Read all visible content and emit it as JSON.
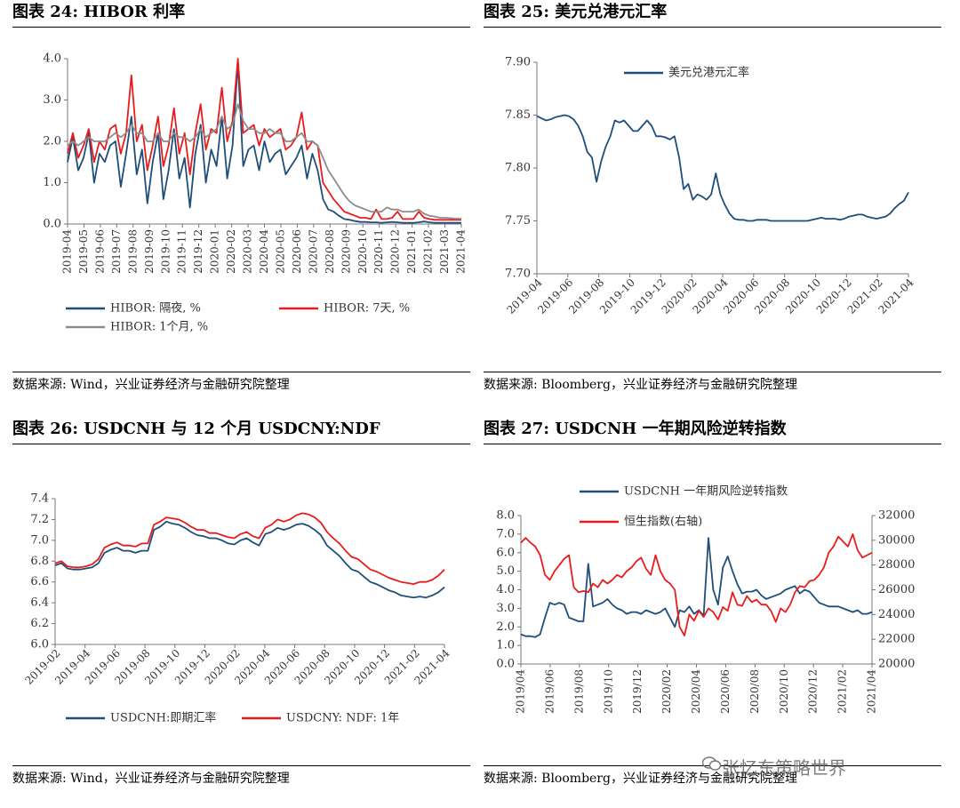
{
  "watermark": "张忆东策略世界",
  "panels": [
    {
      "title": "图表 24:  HIBOR 利率",
      "source": "数据来源:  Wind，兴业证券经济与金融研究院整理",
      "chart_data": {
        "type": "line",
        "title": "",
        "ylim": [
          0,
          4
        ],
        "yticks": [
          "0.0",
          "1.0",
          "2.0",
          "3.0",
          "4.0"
        ],
        "xticks": [
          "2019-04",
          "2019-05",
          "2019-06",
          "2019-07",
          "2019-08",
          "2019-09",
          "2019-10",
          "2019-11",
          "2019-12",
          "2020-01",
          "2020-02",
          "2020-03",
          "2020-04",
          "2020-05",
          "2020-06",
          "2020-07",
          "2020-08",
          "2020-09",
          "2020-10",
          "2020-11",
          "2020-12",
          "2021-01",
          "2021-02",
          "2021-03",
          "2021-04"
        ],
        "legend": "bottom",
        "series": [
          {
            "name": "HIBOR: 隔夜, %",
            "color": "#1f4e79",
            "values": [
              1.5,
              2.1,
              1.3,
              1.6,
              2.2,
              1.0,
              1.7,
              1.5,
              1.9,
              2.0,
              0.9,
              1.7,
              2.6,
              1.2,
              1.8,
              0.5,
              1.5,
              2.2,
              0.6,
              1.3,
              2.3,
              1.1,
              1.6,
              0.4,
              1.7,
              2.4,
              1.0,
              1.8,
              1.4,
              2.6,
              1.1,
              1.9,
              3.9,
              1.4,
              1.8,
              1.9,
              1.3,
              2.0,
              1.5,
              1.7,
              1.8,
              1.2,
              1.4,
              1.6,
              1.9,
              1.1,
              1.7,
              1.3,
              0.6,
              0.35,
              0.3,
              0.2,
              0.12,
              0.1,
              0.07,
              0.05,
              0.05,
              0.04,
              0.04,
              0.03,
              0.04,
              0.05,
              0.04,
              0.03,
              0.03,
              0.03,
              0.04,
              0.06,
              0.04,
              0.03,
              0.03,
              0.03,
              0.03,
              0.03,
              0.03
            ]
          },
          {
            "name": "HIBOR: 7天, %",
            "color": "#e81c1c",
            "values": [
              1.7,
              2.2,
              1.6,
              1.9,
              2.3,
              1.5,
              2.0,
              1.8,
              2.3,
              2.4,
              1.7,
              2.2,
              3.6,
              2.0,
              2.4,
              1.3,
              1.9,
              2.6,
              1.4,
              1.9,
              2.8,
              1.7,
              2.2,
              1.2,
              2.2,
              2.9,
              1.8,
              2.3,
              2.2,
              3.3,
              2.0,
              2.5,
              4.0,
              2.2,
              2.3,
              2.4,
              1.9,
              2.3,
              2.1,
              2.2,
              2.3,
              1.8,
              1.9,
              2.1,
              2.7,
              1.8,
              2.0,
              1.9,
              1.0,
              0.8,
              0.6,
              0.45,
              0.3,
              0.25,
              0.2,
              0.15,
              0.15,
              0.12,
              0.35,
              0.12,
              0.12,
              0.15,
              0.3,
              0.12,
              0.12,
              0.12,
              0.3,
              0.15,
              0.12,
              0.1,
              0.1,
              0.1,
              0.1,
              0.1,
              0.1
            ]
          },
          {
            "name": "HIBOR: 1个月, %",
            "color": "#8c8c8c",
            "values": [
              1.9,
              2.0,
              1.9,
              2.0,
              2.1,
              2.0,
              2.0,
              2.0,
              2.1,
              2.2,
              2.1,
              2.2,
              2.4,
              2.2,
              2.2,
              2.0,
              2.0,
              2.2,
              2.0,
              2.0,
              2.2,
              2.1,
              2.1,
              2.0,
              2.1,
              2.3,
              2.1,
              2.2,
              2.3,
              2.6,
              2.3,
              2.4,
              2.9,
              2.5,
              2.3,
              2.3,
              2.2,
              2.2,
              2.3,
              2.2,
              2.2,
              2.0,
              2.0,
              2.1,
              2.2,
              2.0,
              2.0,
              1.9,
              1.6,
              1.3,
              1.1,
              0.9,
              0.7,
              0.55,
              0.45,
              0.4,
              0.35,
              0.3,
              0.3,
              0.3,
              0.4,
              0.35,
              0.35,
              0.3,
              0.3,
              0.3,
              0.35,
              0.25,
              0.2,
              0.18,
              0.15,
              0.15,
              0.14,
              0.13,
              0.13
            ]
          }
        ]
      }
    },
    {
      "title": "图表 25:  美元兑港元汇率",
      "source": "数据来源:  Bloomberg，兴业证券经济与金融研究院整理",
      "chart_data": {
        "type": "line",
        "title": "",
        "ylim": [
          7.7,
          7.9
        ],
        "yticks": [
          "7.70",
          "7.75",
          "7.80",
          "7.85",
          "7.90"
        ],
        "xticks": [
          "2019-04",
          "2019-06",
          "2019-08",
          "2019-10",
          "2019-12",
          "2020-02",
          "2020-04",
          "2020-06",
          "2020-08",
          "2020-10",
          "2020-12",
          "2021-02",
          "2021-04"
        ],
        "legend": "top-center",
        "series": [
          {
            "name": "美元兑港元汇率",
            "color": "#1f4e79",
            "values": [
              7.849,
              7.847,
              7.845,
              7.846,
              7.848,
              7.849,
              7.85,
              7.849,
              7.846,
              7.84,
              7.83,
              7.815,
              7.81,
              7.787,
              7.806,
              7.82,
              7.83,
              7.845,
              7.843,
              7.845,
              7.84,
              7.835,
              7.835,
              7.84,
              7.845,
              7.84,
              7.83,
              7.83,
              7.829,
              7.827,
              7.83,
              7.81,
              7.78,
              7.785,
              7.77,
              7.775,
              7.773,
              7.77,
              7.775,
              7.795,
              7.775,
              7.765,
              7.757,
              7.752,
              7.751,
              7.751,
              7.75,
              7.75,
              7.751,
              7.751,
              7.751,
              7.75,
              7.75,
              7.75,
              7.75,
              7.75,
              7.75,
              7.75,
              7.75,
              7.75,
              7.751,
              7.752,
              7.753,
              7.752,
              7.752,
              7.752,
              7.751,
              7.752,
              7.754,
              7.755,
              7.756,
              7.756,
              7.754,
              7.753,
              7.752,
              7.753,
              7.754,
              7.757,
              7.762,
              7.766,
              7.769,
              7.777
            ]
          }
        ]
      }
    },
    {
      "title": "图表 26:  USDCNH 与 12 个月 USDCNY:NDF",
      "source": "数据来源:  Wind，兴业证券经济与金融研究院整理",
      "chart_data": {
        "type": "line",
        "title": "",
        "ylim": [
          6.0,
          7.4
        ],
        "yticks": [
          "6.0",
          "6.2",
          "6.4",
          "6.6",
          "6.8",
          "7.0",
          "7.2",
          "7.4"
        ],
        "xticks": [
          "2019-02",
          "2019-04",
          "2019-06",
          "2019-08",
          "2019-10",
          "2019-12",
          "2020-02",
          "2020-04",
          "2020-06",
          "2020-08",
          "2020-10",
          "2020-12",
          "2021-02",
          "2021-04"
        ],
        "legend": "bottom",
        "series": [
          {
            "name": "USDCNH:即期汇率",
            "color": "#1f4e79",
            "values": [
              6.76,
              6.78,
              6.73,
              6.72,
              6.72,
              6.73,
              6.74,
              6.78,
              6.88,
              6.91,
              6.93,
              6.9,
              6.9,
              6.88,
              6.9,
              6.9,
              7.1,
              7.13,
              7.18,
              7.16,
              7.15,
              7.12,
              7.08,
              7.05,
              7.04,
              7.02,
              7.02,
              7.0,
              6.97,
              6.96,
              7.0,
              7.02,
              6.98,
              6.95,
              7.06,
              7.08,
              7.12,
              7.1,
              7.12,
              7.15,
              7.16,
              7.14,
              7.1,
              7.05,
              6.95,
              6.9,
              6.85,
              6.78,
              6.72,
              6.7,
              6.65,
              6.6,
              6.58,
              6.55,
              6.52,
              6.5,
              6.47,
              6.46,
              6.45,
              6.46,
              6.45,
              6.47,
              6.5,
              6.55
            ]
          },
          {
            "name": "USDCNY: NDF: 1年",
            "color": "#e81c1c",
            "values": [
              6.78,
              6.8,
              6.75,
              6.74,
              6.74,
              6.75,
              6.77,
              6.82,
              6.93,
              6.96,
              6.98,
              6.95,
              6.95,
              6.94,
              6.97,
              6.97,
              7.15,
              7.18,
              7.22,
              7.21,
              7.2,
              7.17,
              7.13,
              7.1,
              7.1,
              7.07,
              7.07,
              7.05,
              7.03,
              7.02,
              7.06,
              7.08,
              7.04,
              7.02,
              7.12,
              7.15,
              7.2,
              7.18,
              7.2,
              7.24,
              7.26,
              7.25,
              7.22,
              7.17,
              7.08,
              7.02,
              6.97,
              6.9,
              6.84,
              6.82,
              6.77,
              6.72,
              6.7,
              6.67,
              6.64,
              6.62,
              6.6,
              6.59,
              6.58,
              6.6,
              6.6,
              6.62,
              6.66,
              6.72
            ]
          }
        ]
      }
    },
    {
      "title": "图表 27:  USDCNH 一年期风险逆转指数",
      "source": "数据来源:  Bloomberg，兴业证券经济与金融研究院整理",
      "chart_data": {
        "type": "line",
        "title": "",
        "ylim": [
          0,
          8
        ],
        "yticks": [
          "0.0",
          "1.0",
          "2.0",
          "3.0",
          "4.0",
          "5.0",
          "6.0",
          "7.0",
          "8.0"
        ],
        "y2lim": [
          20000,
          32000
        ],
        "y2ticks": [
          "20000",
          "22000",
          "24000",
          "26000",
          "28000",
          "30000",
          "32000"
        ],
        "xticks": [
          "2019/04",
          "2019/06",
          "2019/08",
          "2019/10",
          "2019/12",
          "2020/02",
          "2020/04",
          "2020/06",
          "2020/08",
          "2020/10",
          "2020/12",
          "2021/02",
          "2021/04"
        ],
        "legend": "top-center",
        "series": [
          {
            "name": "USDCNH 一年期风险逆转指数",
            "color": "#1f4e79",
            "axis": "left",
            "values": [
              1.6,
              1.5,
              1.5,
              1.45,
              1.6,
              2.5,
              3.3,
              3.2,
              3.3,
              3.2,
              2.5,
              2.4,
              2.3,
              2.3,
              5.4,
              3.1,
              3.2,
              3.3,
              3.5,
              3.2,
              3.0,
              2.9,
              2.7,
              2.8,
              2.8,
              2.7,
              2.9,
              2.8,
              2.7,
              2.8,
              3.0,
              2.5,
              2.0,
              2.9,
              2.8,
              3.1,
              2.7,
              2.9,
              2.6,
              6.8,
              4.0,
              3.2,
              5.2,
              5.8,
              5.0,
              4.3,
              3.8,
              3.9,
              3.9,
              4.0,
              3.7,
              3.5,
              3.6,
              3.7,
              3.8,
              4.0,
              4.1,
              4.2,
              3.8,
              4.0,
              3.9,
              3.6,
              3.3,
              3.2,
              3.1,
              3.1,
              3.1,
              3.0,
              2.9,
              2.8,
              2.9,
              2.7,
              2.7,
              2.8
            ]
          },
          {
            "name": "恒生指数(右轴)",
            "color": "#e81c1c",
            "axis": "right",
            "values": [
              29800,
              30200,
              29800,
              29500,
              28800,
              27200,
              26800,
              27500,
              28000,
              28500,
              28800,
              26200,
              25800,
              25900,
              25800,
              26500,
              26200,
              26800,
              26500,
              26800,
              27200,
              27000,
              27500,
              27800,
              28300,
              28600,
              27700,
              27200,
              28800,
              27500,
              26800,
              26500,
              26000,
              23000,
              22300,
              24000,
              23500,
              24300,
              23800,
              24500,
              24200,
              23600,
              24600,
              24300,
              25800,
              24800,
              24700,
              25500,
              25000,
              25200,
              24800,
              24800,
              24300,
              23400,
              24500,
              24200,
              24800,
              25800,
              26300,
              26200,
              26700,
              26800,
              27200,
              27800,
              29000,
              29500,
              30300,
              29900,
              29500,
              30500,
              29200,
              28600,
              28800,
              29000
            ]
          }
        ]
      }
    }
  ]
}
